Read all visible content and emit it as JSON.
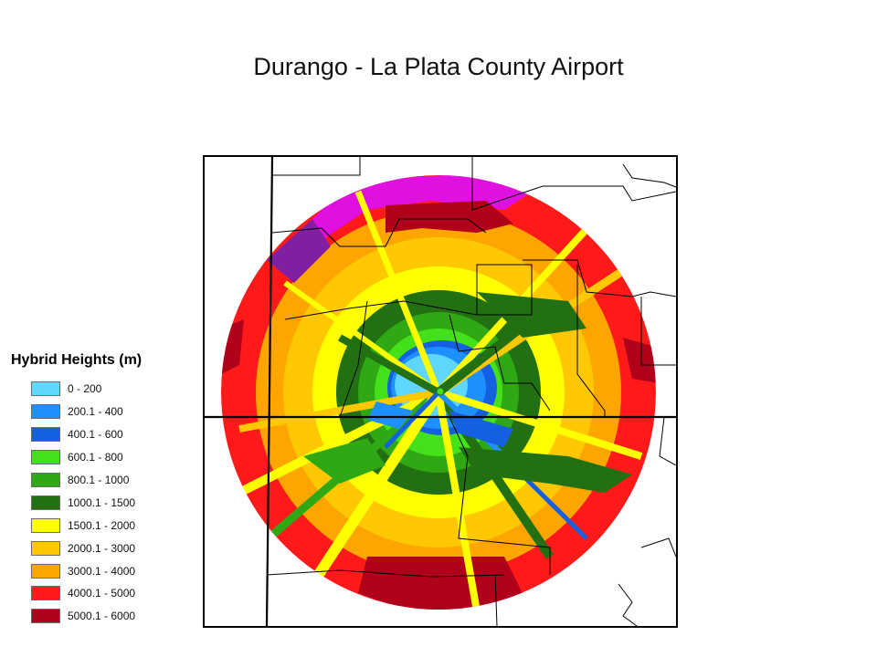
{
  "slide": {
    "title": "Durango - La Plata County Airport"
  },
  "legend": {
    "title": "Hybrid Heights (m)",
    "items": [
      {
        "label": "0 - 200",
        "color": "#5ed6ff"
      },
      {
        "label": "200.1 - 400",
        "color": "#1e90ff"
      },
      {
        "label": "400.1 - 600",
        "color": "#1560e0"
      },
      {
        "label": "600.1 - 800",
        "color": "#44e01a"
      },
      {
        "label": "800.1 - 1000",
        "color": "#30a814"
      },
      {
        "label": "1000.1 - 1500",
        "color": "#227012"
      },
      {
        "label": "1500.1 - 2000",
        "color": "#ffff00"
      },
      {
        "label": "2000.1 - 3000",
        "color": "#ffc800"
      },
      {
        "label": "3000.1 - 4000",
        "color": "#ffa500"
      },
      {
        "label": "4000.1 - 5000",
        "color": "#ff1a1a"
      },
      {
        "label": "5000.1 - 6000",
        "color": "#b0001a"
      }
    ],
    "extra_color": "#e010e0"
  },
  "map": {
    "site_marker_color": "#44e01a"
  }
}
